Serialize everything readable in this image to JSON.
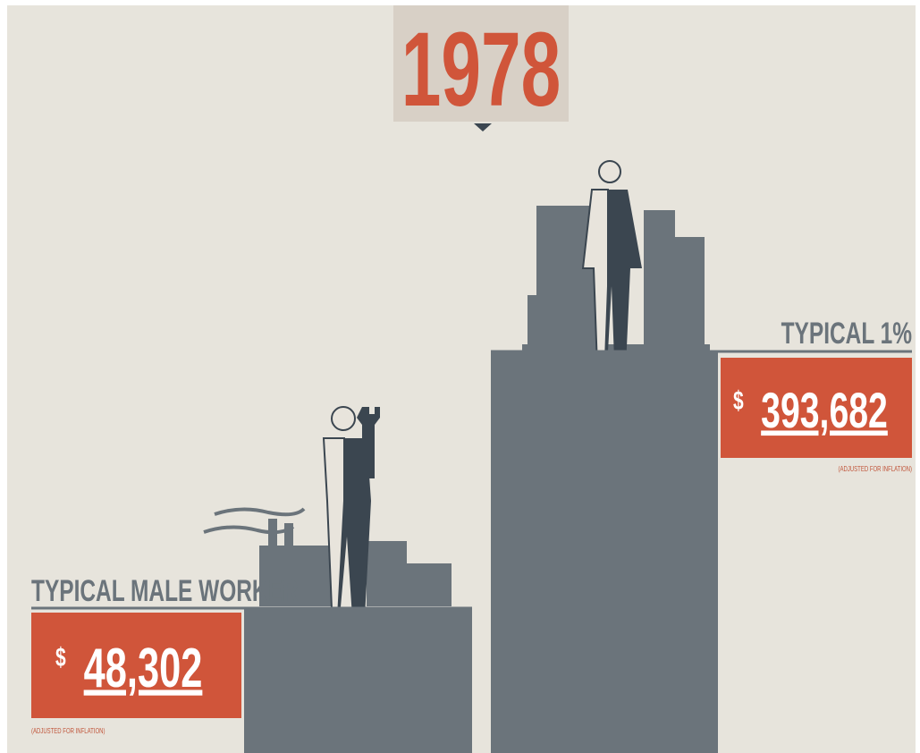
{
  "year": "1978",
  "left": {
    "label": "TYPICAL MALE WORKER",
    "currency": "$",
    "amount": "48,302",
    "note": "(ADJUSTED FOR INFLATION)"
  },
  "right": {
    "label": "TYPICAL 1%",
    "currency": "$",
    "amount": "393,682",
    "note": "(ADJUSTED FOR INFLATION)"
  }
}
